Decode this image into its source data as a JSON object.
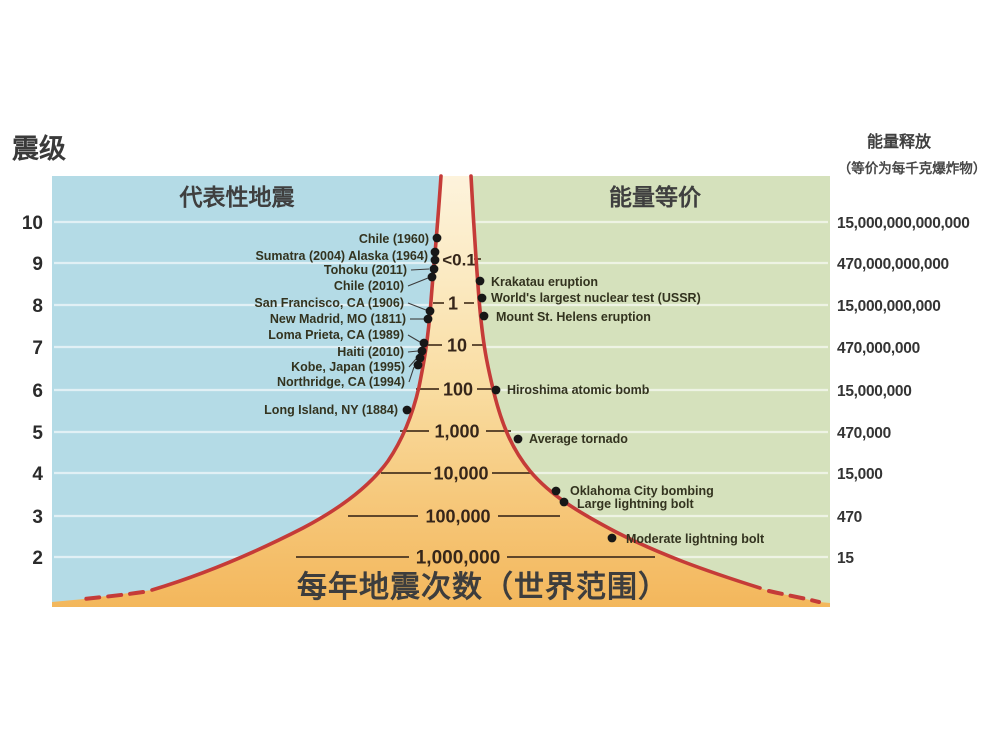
{
  "axis_left": {
    "title": "震级",
    "ticks": [
      "10",
      "9",
      "8",
      "7",
      "6",
      "5",
      "4",
      "3",
      "2"
    ]
  },
  "axis_right": {
    "title_line1": "能量释放",
    "title_line2": "（等价为每千克爆炸物）",
    "values": [
      "15,000,000,000,000",
      "470,000,000,000",
      "15,000,000,000",
      "470,000,000",
      "15,000,000",
      "470,000",
      "15,000",
      "470",
      "15"
    ]
  },
  "headers": {
    "left": "代表性地震",
    "right": "能量等价"
  },
  "bottom_title": "每年地震次数（世界范围）",
  "frequency_labels": [
    "<0.1",
    "1",
    "10",
    "100",
    "1,000",
    "10,000",
    "100,000",
    "1,000,000"
  ],
  "earthquakes": [
    {
      "label": "Chile (1960)",
      "magnitude_approx": 9.6
    },
    {
      "label": "Sumatra (2004)  Alaska (1964)",
      "magnitude_approx": 9.2
    },
    {
      "label": "Tohoku (2011)",
      "magnitude_approx": 8.9
    },
    {
      "label": "Chile (2010)",
      "magnitude_approx": 8.7
    },
    {
      "label": "San Francisco, CA (1906)",
      "magnitude_approx": 7.9
    },
    {
      "label": "New Madrid, MO (1811)",
      "magnitude_approx": 7.7
    },
    {
      "label": "Loma Prieta, CA (1989)",
      "magnitude_approx": 7.1
    },
    {
      "label": "Haiti (2010)",
      "magnitude_approx": 6.9
    },
    {
      "label": "Kobe, Japan (1995)",
      "magnitude_approx": 6.8
    },
    {
      "label": "Northridge, CA (1994)",
      "magnitude_approx": 6.6
    },
    {
      "label": "Long Island, NY (1884)",
      "magnitude_approx": 5.5
    }
  ],
  "equivalents": [
    {
      "label": "Krakatau eruption",
      "magnitude_approx": 8.6
    },
    {
      "label": "World's largest nuclear test (USSR)",
      "magnitude_approx": 8.2
    },
    {
      "label": "Mount St. Helens eruption",
      "magnitude_approx": 7.8
    },
    {
      "label": "Hiroshima atomic bomb",
      "magnitude_approx": 6.0
    },
    {
      "label": "Average tornado",
      "magnitude_approx": 4.8
    },
    {
      "label": "Oklahoma City bombing",
      "magnitude_approx": 3.6
    },
    {
      "label": "Large lightning bolt",
      "magnitude_approx": 3.3
    },
    {
      "label": "Moderate lightning bolt",
      "magnitude_approx": 2.4
    }
  ],
  "colors": {
    "blue": "#b4dbe6",
    "green": "#d5e1bc",
    "cream": "#fdf3dc",
    "orange": "#f3b75c",
    "curve_red": "#c53b38",
    "ink": "#3a3a3a",
    "number_brown": "#36261a"
  },
  "chart_data": {
    "type": "area",
    "title": "每年地震次数（世界范围）",
    "y_axis": {
      "label": "震级",
      "ticks": [
        10,
        9,
        8,
        7,
        6,
        5,
        4,
        3,
        2
      ],
      "range": [
        1.5,
        10.5
      ]
    },
    "frequency_by_magnitude": [
      {
        "magnitude": 9,
        "annual_count": "<0.1"
      },
      {
        "magnitude": 8,
        "annual_count": "1"
      },
      {
        "magnitude": 7,
        "annual_count": "10"
      },
      {
        "magnitude": 6,
        "annual_count": "100"
      },
      {
        "magnitude": 5,
        "annual_count": "1,000"
      },
      {
        "magnitude": 4,
        "annual_count": "10,000"
      },
      {
        "magnitude": 3,
        "annual_count": "100,000"
      },
      {
        "magnitude": 2,
        "annual_count": "1,000,000"
      }
    ],
    "energy_release_kg_explosive_by_magnitude": [
      {
        "magnitude": 10,
        "energy": "15,000,000,000,000"
      },
      {
        "magnitude": 9,
        "energy": "470,000,000,000"
      },
      {
        "magnitude": 8,
        "energy": "15,000,000,000"
      },
      {
        "magnitude": 7,
        "energy": "470,000,000"
      },
      {
        "magnitude": 6,
        "energy": "15,000,000"
      },
      {
        "magnitude": 5,
        "energy": "470,000"
      },
      {
        "magnitude": 4,
        "energy": "15,000"
      },
      {
        "magnitude": 3,
        "energy": "470"
      },
      {
        "magnitude": 2,
        "energy": "15"
      }
    ],
    "legend_regions": [
      "代表性地震",
      "能量等价"
    ],
    "grid": true
  }
}
